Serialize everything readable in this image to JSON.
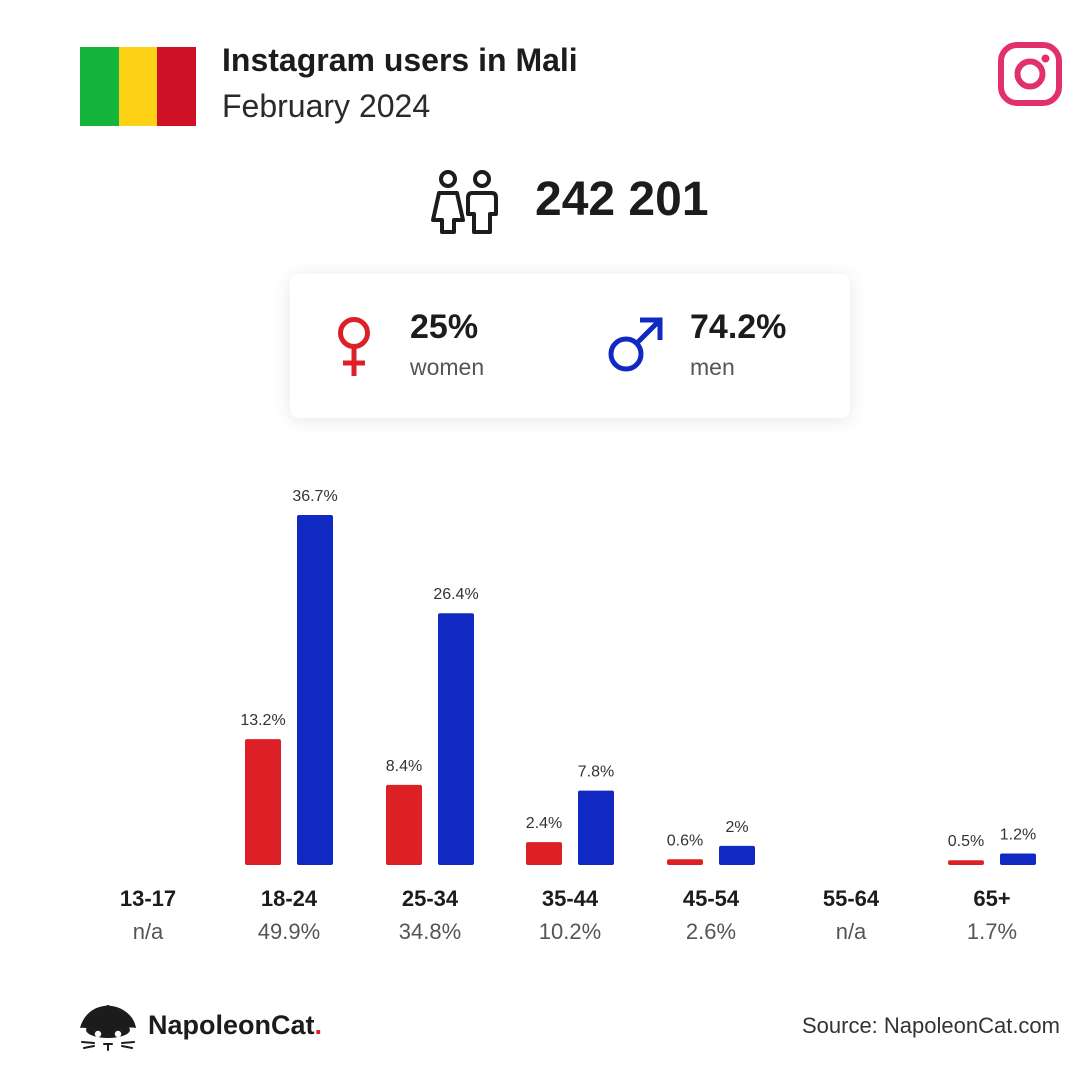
{
  "header": {
    "title": "Instagram users in Mali",
    "subtitle": "February 2024",
    "flag_colors": [
      "#14b53a",
      "#fcd116",
      "#ce1126"
    ],
    "platform_icon": "instagram-icon",
    "platform_color": "#e1306c"
  },
  "summary": {
    "total": "242 201",
    "people_icon": "users-icon",
    "women": {
      "value": "25%",
      "label": "women",
      "icon": "female-symbol-icon",
      "color": "#dd2026"
    },
    "men": {
      "value": "74.2%",
      "label": "men",
      "icon": "male-symbol-icon",
      "color": "#1029c2"
    }
  },
  "chart_data": {
    "type": "bar",
    "categories": [
      "13-17",
      "18-24",
      "25-34",
      "35-44",
      "45-54",
      "55-64",
      "65+"
    ],
    "category_totals": [
      "n/a",
      "49.9%",
      "34.8%",
      "10.2%",
      "2.6%",
      "n/a",
      "1.7%"
    ],
    "series": [
      {
        "color": "#dd2026",
        "values": [
          null,
          13.2,
          8.4,
          2.4,
          0.6,
          null,
          0.5
        ],
        "labels": [
          "",
          "13.2%",
          "8.4%",
          "2.4%",
          "0.6%",
          "",
          "0.5%"
        ]
      },
      {
        "color": "#1029c2",
        "values": [
          null,
          36.7,
          26.4,
          7.8,
          2,
          null,
          1.2
        ],
        "labels": [
          "",
          "36.7%",
          "26.4%",
          "7.8%",
          "2%",
          "",
          "1.2%"
        ]
      }
    ],
    "ylim": [
      0,
      36.7
    ],
    "grid": false
  },
  "footer": {
    "brand": "NapoleonCat",
    "brand_dot": ".",
    "brand_icon": "napoleoncat-logo-icon",
    "source": "Source: NapoleonCat.com"
  }
}
